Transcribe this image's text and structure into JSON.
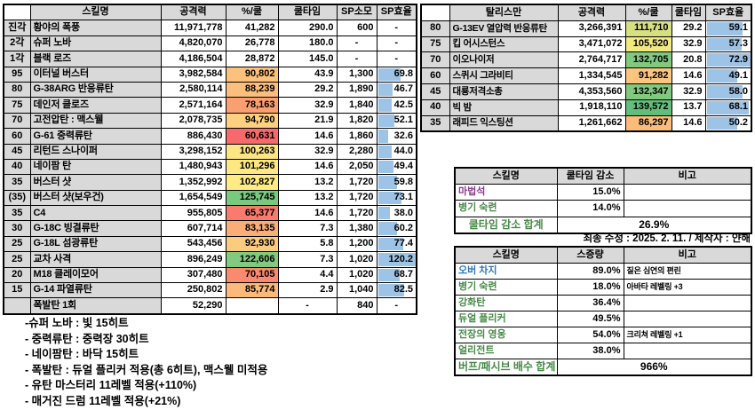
{
  "colors": {
    "bar_fill": "#9DC3E6",
    "header_bg": "#D9D9D9",
    "text_green": "#468A46",
    "text_purple": "#8B3A8B",
    "text_blue": "#2E75B6"
  },
  "skill_table": {
    "headers": [
      "",
      "스킬명",
      "공격력",
      "%/쿨",
      "쿨타임",
      "SP소모",
      "SP효율"
    ],
    "bar_max": 120.2,
    "rows": [
      {
        "lv": "진각",
        "name": "황야의 폭풍",
        "atk": "11,971,778",
        "pct": "41,282",
        "pct_bg": "",
        "cool": "290.0",
        "sp": "600",
        "eff": "-"
      },
      {
        "lv": "2각",
        "name": "슈퍼 노바",
        "atk": "4,820,070",
        "pct": "26,778",
        "pct_bg": "",
        "cool": "180.0",
        "sp": "-",
        "eff": "-"
      },
      {
        "lv": "1각",
        "name": "블랙 로즈",
        "atk": "4,186,504",
        "pct": "28,872",
        "pct_bg": "",
        "cool": "145.0",
        "sp": "-",
        "eff": "-"
      },
      {
        "lv": "95",
        "name": "이터널 버스터",
        "atk": "3,982,584",
        "pct": "90,802",
        "pct_bg": "#FCC27D",
        "cool": "43.9",
        "sp": "1,300",
        "eff": "69.8"
      },
      {
        "lv": "80",
        "name": "G-38ARG 반응류탄",
        "atk": "2,580,114",
        "pct": "88,239",
        "pct_bg": "#FBBE7C",
        "cool": "29.2",
        "sp": "1,890",
        "eff": "46.7"
      },
      {
        "lv": "75",
        "name": "데인저 클로즈",
        "atk": "2,571,164",
        "pct": "78,163",
        "pct_bg": "#F99F72",
        "cool": "32.9",
        "sp": "1,840",
        "eff": "42.5"
      },
      {
        "lv": "70",
        "name": "고전압탄 : 맥스웰",
        "atk": "2,078,735",
        "pct": "94,790",
        "pct_bg": "#FDD17F",
        "cool": "21.9",
        "sp": "1,820",
        "eff": "52.1"
      },
      {
        "lv": "60",
        "name": "G-61 중력류탄",
        "atk": "886,430",
        "pct": "60,631",
        "pct_bg": "#F8696B",
        "cool": "14.6",
        "sp": "1,860",
        "eff": "32.6"
      },
      {
        "lv": "45",
        "name": "리턴드 스나이퍼",
        "atk": "3,298,152",
        "pct": "100,263",
        "pct_bg": "#FEE583",
        "cool": "32.9",
        "sp": "2,280",
        "eff": "44.0"
      },
      {
        "lv": "40",
        "name": "네이팜 탄",
        "atk": "1,480,943",
        "pct": "101,296",
        "pct_bg": "#FEE883",
        "cool": "14.6",
        "sp": "2,050",
        "eff": "49.4"
      },
      {
        "lv": "35",
        "name": "버스터 샷",
        "atk": "1,352,992",
        "pct": "102,827",
        "pct_bg": "#FFEB84",
        "cool": "13.2",
        "sp": "1,720",
        "eff": "59.8"
      },
      {
        "lv": "(35)",
        "name": "버스터 샷(보우건)",
        "atk": "1,654,549",
        "pct": "125,745",
        "pct_bg": "#79C97E",
        "cool": "13.2",
        "sp": "1,720",
        "eff": "73.1"
      },
      {
        "lv": "35",
        "name": "C4",
        "atk": "955,805",
        "pct": "65,377",
        "pct_bg": "#F87B6D",
        "cool": "14.6",
        "sp": "1,720",
        "eff": "38.0"
      },
      {
        "lv": "30",
        "name": "G-18C 빙결류탄",
        "atk": "607,714",
        "pct": "83,135",
        "pct_bg": "#FAAE77",
        "cool": "7.3",
        "sp": "1,380",
        "eff": "60.2"
      },
      {
        "lv": "25",
        "name": "G-18L 섬광류탄",
        "atk": "543,456",
        "pct": "92,930",
        "pct_bg": "#FCCB7E",
        "cool": "5.8",
        "sp": "1,200",
        "eff": "77.4"
      },
      {
        "lv": "25",
        "name": "교차 사격",
        "atk": "896,249",
        "pct": "122,606",
        "pct_bg": "#82CA7F",
        "cool": "7.3",
        "sp": "1,020",
        "eff": "120.2"
      },
      {
        "lv": "20",
        "name": "M18 클레이모어",
        "atk": "307,480",
        "pct": "70,105",
        "pct_bg": "#F9896F",
        "cool": "4.4",
        "sp": "1,020",
        "eff": "68.7"
      },
      {
        "lv": "15",
        "name": "G-14 파열류탄",
        "atk": "250,802",
        "pct": "85,774",
        "pct_bg": "#FBB97A",
        "cool": "2.9",
        "sp": "1,040",
        "eff": "82.5"
      },
      {
        "lv": "",
        "name": "폭발탄 1회",
        "atk": "52,290",
        "pct": "",
        "pct_bg": "",
        "cool": "-",
        "sp": "840",
        "eff": "-"
      }
    ]
  },
  "talisman_table": {
    "headers": [
      "",
      "탈리스만",
      "공격력",
      "%/쿨",
      "쿨타임",
      "SP효율"
    ],
    "bar_max": 72.9,
    "rows": [
      {
        "lv": "80",
        "name": "G-13EV 열압력 반응류탄",
        "atk": "3,266,391",
        "pct": "111,710",
        "pct_bg": "#D6DF82",
        "cool": "29.2",
        "eff": "59.1"
      },
      {
        "lv": "75",
        "name": "킵 어시스턴스",
        "atk": "3,471,072",
        "pct": "105,520",
        "pct_bg": "#F3E983",
        "cool": "32.9",
        "eff": "57.3"
      },
      {
        "lv": "70",
        "name": "이오나이저",
        "atk": "2,764,717",
        "pct": "132,705",
        "pct_bg": "#80C97E",
        "cool": "20.8",
        "eff": "72.9"
      },
      {
        "lv": "60",
        "name": "스퀴시 그라비티",
        "atk": "1,334,545",
        "pct": "91,282",
        "pct_bg": "#FCC57D",
        "cool": "14.6",
        "eff": "49.1"
      },
      {
        "lv": "45",
        "name": "대룡저격소총",
        "atk": "4,353,560",
        "pct": "132,347",
        "pct_bg": "#81C97E",
        "cool": "32.9",
        "eff": "58.0"
      },
      {
        "lv": "40",
        "name": "빅 밤",
        "atk": "1,918,110",
        "pct": "139,572",
        "pct_bg": "#63BE7B",
        "cool": "13.7",
        "eff": "68.1"
      },
      {
        "lv": "35",
        "name": "래피드 익스팅션",
        "atk": "1,261,662",
        "pct": "86,297",
        "pct_bg": "#FBBC7B",
        "cool": "14.6",
        "eff": "50.2"
      }
    ]
  },
  "cooldown_table": {
    "headers": [
      "스킬명",
      "쿨타임 감소",
      "비고"
    ],
    "rows": [
      {
        "name": "마법석",
        "color": "purple",
        "value": "15.0%",
        "note": ""
      },
      {
        "name": "병기 숙련",
        "color": "green",
        "value": "14.0%",
        "note": ""
      }
    ],
    "total_label": "쿨타임 감소 합계",
    "total_value": "26.9%"
  },
  "revision_note": "최종 수정 : 2025. 2. 11. / 제작자 : 얀해",
  "buff_table": {
    "headers": [
      "스킬명",
      "스증량",
      "비고"
    ],
    "rows": [
      {
        "name": "오버 차지",
        "color": "blue",
        "value": "89.0%",
        "note": "짙은 심연의 편린"
      },
      {
        "name": "병기 숙련",
        "color": "green",
        "value": "18.0%",
        "note": "아바타 레벨링 +3"
      },
      {
        "name": "강화탄",
        "color": "green",
        "value": "36.4%",
        "note": ""
      },
      {
        "name": "듀얼 플리커",
        "color": "green",
        "value": "49.5%",
        "note": ""
      },
      {
        "name": "전장의 영웅",
        "color": "green",
        "value": "54.0%",
        "note": "크리쳐 레벨링 +1"
      },
      {
        "name": "얼리전트",
        "color": "green",
        "value": "38.0%",
        "note": ""
      }
    ],
    "total_label": "버프/패시브 배수 합계",
    "total_value": "966%"
  },
  "footnotes": [
    "-슈퍼 노바 : 빛 15히트",
    "- 중력류탄 : 중력장 30히트",
    "- 네이팜탄 : 바닥 15히트",
    "- 폭발탄 : 듀얼 플리커 적용(총 6히트), 맥스웰 미적용",
    "- 유탄 마스터리 11레벨 적용(+110%)",
    "- 매거진 드럼 11레벨 적용(+21%)"
  ]
}
